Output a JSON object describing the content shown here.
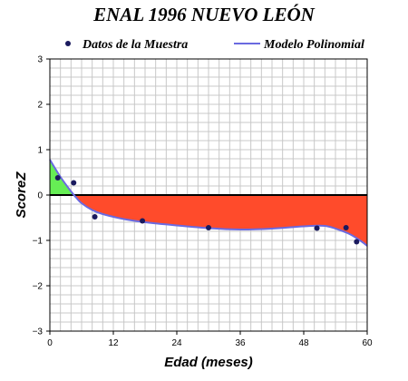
{
  "chart_data": {
    "type": "scatter",
    "title": "ENAL 1996 NUEVO LEÓN",
    "xlabel": "Edad (meses)",
    "ylabel": "ScoreZ",
    "xlim": [
      0,
      60
    ],
    "ylim": [
      -3,
      3
    ],
    "x_ticks": [
      0,
      12,
      24,
      36,
      48,
      60
    ],
    "y_ticks": [
      -3,
      -2,
      -1,
      0,
      1,
      2,
      3
    ],
    "grid": true,
    "legend_position": "top",
    "series": [
      {
        "name": "Datos de la Muestra",
        "kind": "scatter",
        "color": "#1a1a5e",
        "x": [
          1.5,
          4.5,
          8.5,
          17.5,
          30,
          50.5,
          56,
          58
        ],
        "y": [
          0.38,
          0.27,
          -0.48,
          -0.57,
          -0.72,
          -0.73,
          -0.72,
          -1.03
        ]
      },
      {
        "name": "Modelo Polinomial",
        "kind": "line",
        "color": "#6a6ae0",
        "x": [
          0,
          2,
          4,
          5,
          6,
          8,
          10,
          14,
          18,
          24,
          30,
          36,
          42,
          48,
          52,
          55,
          57,
          59,
          60
        ],
        "y": [
          0.78,
          0.4,
          0.08,
          -0.06,
          -0.18,
          -0.33,
          -0.42,
          -0.53,
          -0.6,
          -0.67,
          -0.73,
          -0.76,
          -0.74,
          -0.69,
          -0.68,
          -0.78,
          -0.88,
          -1.03,
          -1.12
        ]
      }
    ],
    "fill_above_color": "#66ee55",
    "fill_below_color": "#ff4b2b",
    "zero_line_color": "#000000"
  }
}
